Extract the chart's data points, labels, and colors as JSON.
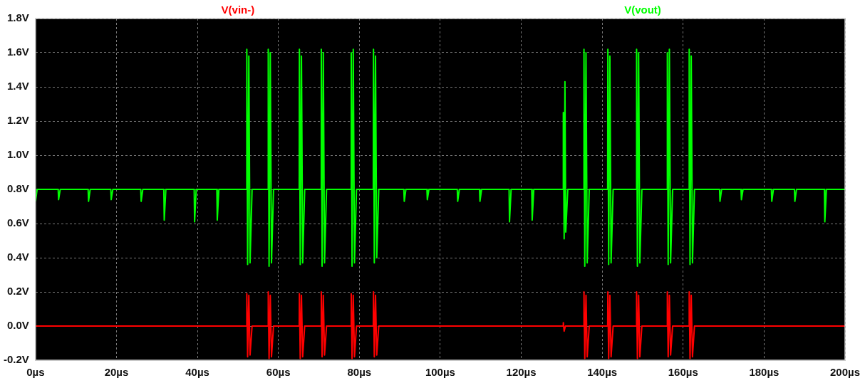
{
  "chart_data": {
    "type": "line",
    "legend": "top",
    "grid": true,
    "line_style": "solid",
    "marker": "none",
    "xlim": [
      0,
      200
    ],
    "xticks": [
      {
        "value": 0,
        "label": "0µs"
      },
      {
        "value": 20,
        "label": "20µs"
      },
      {
        "value": 40,
        "label": "40µs"
      },
      {
        "value": 60,
        "label": "60µs"
      },
      {
        "value": 80,
        "label": "80µs"
      },
      {
        "value": 100,
        "label": "100µs"
      },
      {
        "value": 120,
        "label": "120µs"
      },
      {
        "value": 140,
        "label": "140µs"
      },
      {
        "value": 160,
        "label": "160µs"
      },
      {
        "value": 180,
        "label": "180µs"
      },
      {
        "value": 200,
        "label": "200µs"
      }
    ],
    "ylim": [
      -0.2,
      1.8
    ],
    "yticks": [
      {
        "value": -0.2,
        "label": "-0.2V"
      },
      {
        "value": 0,
        "label": "0.0V"
      },
      {
        "value": 0.2,
        "label": "0.2V"
      },
      {
        "value": 0.4,
        "label": "0.4V"
      },
      {
        "value": 0.6,
        "label": "0.6V"
      },
      {
        "value": 0.8,
        "label": "0.8V"
      },
      {
        "value": 1.0,
        "label": "1.0V"
      },
      {
        "value": 1.2,
        "label": "1.2V"
      },
      {
        "value": 1.4,
        "label": "1.4V"
      },
      {
        "value": 1.6,
        "label": "1.6V"
      },
      {
        "value": 1.8,
        "label": "1.8V"
      }
    ],
    "series": [
      {
        "name": "V(vin-)",
        "color": "#ff0000",
        "x": [
          0,
          52.15,
          52.2,
          52.4,
          52.7,
          53.0,
          53.5,
          57.45,
          57.5,
          57.7,
          58.0,
          58.3,
          58.8,
          65.15,
          65.2,
          65.4,
          65.7,
          66.0,
          66.5,
          70.55,
          70.6,
          70.8,
          71.1,
          71.4,
          71.9,
          77.95,
          78.0,
          78.2,
          78.5,
          78.8,
          79.3,
          83.45,
          83.5,
          83.7,
          84.0,
          84.3,
          84.8,
          130.35,
          130.4,
          130.6,
          130.9,
          135.45,
          135.5,
          135.7,
          136.0,
          136.3,
          136.8,
          141.35,
          141.4,
          141.6,
          141.9,
          142.2,
          142.7,
          148.45,
          148.5,
          148.7,
          149.0,
          149.3,
          149.8,
          156.05,
          156.1,
          156.3,
          156.6,
          156.9,
          157.4,
          161.45,
          161.5,
          161.7,
          162.0,
          162.3,
          162.8,
          200
        ],
        "values": [
          0,
          0,
          0.19,
          -0.18,
          0.18,
          -0.17,
          0,
          0,
          0.2,
          -0.19,
          0.18,
          -0.18,
          0,
          0,
          0.19,
          -0.19,
          0.18,
          -0.18,
          0,
          0,
          0.2,
          -0.18,
          0.18,
          -0.17,
          0,
          0,
          0.19,
          -0.19,
          0.18,
          -0.18,
          0,
          0,
          0.2,
          -0.18,
          0.18,
          -0.17,
          0,
          0,
          0.02,
          -0.03,
          0,
          0,
          0.2,
          -0.19,
          0.18,
          -0.18,
          0,
          0,
          0.2,
          -0.19,
          0.18,
          -0.18,
          0,
          0,
          0.2,
          -0.19,
          0.18,
          -0.18,
          0,
          0,
          0.2,
          -0.18,
          0.18,
          -0.17,
          0,
          0,
          0.2,
          -0.19,
          0.18,
          -0.18,
          0,
          0
        ]
      },
      {
        "name": "V(vout)",
        "color": "#00ff00",
        "x": [
          0,
          0.4,
          5.6,
          5.7,
          6.1,
          13.0,
          13.1,
          13.5,
          18.6,
          18.7,
          19.1,
          26.0,
          26.1,
          26.5,
          31.7,
          31.8,
          32.2,
          39.2,
          39.3,
          39.7,
          44.8,
          44.9,
          45.3,
          52.15,
          52.2,
          52.4,
          52.7,
          53.0,
          53.5,
          57.45,
          57.5,
          57.7,
          58.0,
          58.3,
          58.8,
          65.15,
          65.2,
          65.4,
          65.7,
          66.0,
          66.5,
          70.55,
          70.6,
          70.8,
          71.1,
          71.4,
          71.9,
          77.95,
          78.0,
          78.2,
          78.5,
          78.8,
          79.3,
          83.45,
          83.5,
          83.7,
          84.0,
          84.3,
          84.8,
          91.0,
          91.1,
          91.5,
          96.7,
          96.8,
          97.2,
          104.2,
          104.3,
          104.7,
          109.7,
          109.8,
          110.2,
          117.0,
          117.1,
          117.5,
          122.6,
          122.7,
          123.1,
          130.35,
          130.4,
          130.6,
          130.8,
          131.0,
          131.5,
          135.45,
          135.5,
          135.7,
          136.0,
          136.3,
          136.8,
          141.35,
          141.4,
          141.6,
          141.9,
          142.2,
          142.7,
          148.45,
          148.5,
          148.7,
          149.0,
          149.3,
          149.8,
          156.05,
          156.1,
          156.3,
          156.6,
          156.9,
          157.4,
          161.45,
          161.5,
          161.7,
          162.0,
          162.3,
          162.8,
          169.0,
          169.1,
          169.5,
          174.3,
          174.4,
          174.8,
          181.8,
          181.9,
          182.3,
          187.5,
          187.6,
          188.0,
          194.9,
          195.0,
          195.4,
          200
        ],
        "values": [
          0.73,
          0.8,
          0.8,
          0.74,
          0.8,
          0.8,
          0.73,
          0.8,
          0.8,
          0.74,
          0.8,
          0.8,
          0.73,
          0.8,
          0.8,
          0.62,
          0.8,
          0.8,
          0.61,
          0.8,
          0.8,
          0.62,
          0.8,
          0.8,
          1.62,
          0.36,
          1.58,
          0.37,
          0.8,
          0.8,
          1.62,
          0.35,
          1.6,
          0.37,
          0.8,
          0.8,
          1.62,
          0.36,
          1.58,
          0.37,
          0.8,
          0.8,
          1.62,
          0.35,
          1.6,
          0.37,
          0.8,
          0.8,
          1.6,
          0.35,
          1.62,
          0.37,
          0.8,
          0.8,
          1.62,
          0.37,
          1.58,
          0.4,
          0.8,
          0.8,
          0.73,
          0.8,
          0.8,
          0.74,
          0.8,
          0.8,
          0.73,
          0.8,
          0.8,
          0.73,
          0.8,
          0.8,
          0.61,
          0.8,
          0.8,
          0.62,
          0.8,
          0.8,
          1.25,
          0.51,
          1.43,
          0.55,
          0.8,
          0.8,
          1.62,
          0.35,
          1.6,
          0.37,
          0.8,
          0.8,
          1.62,
          0.36,
          1.58,
          0.37,
          0.8,
          0.8,
          1.62,
          0.35,
          1.6,
          0.37,
          0.8,
          0.8,
          1.6,
          0.36,
          1.62,
          0.37,
          0.8,
          0.8,
          1.62,
          0.36,
          1.58,
          0.37,
          0.8,
          0.8,
          0.73,
          0.8,
          0.8,
          0.74,
          0.8,
          0.8,
          0.73,
          0.8,
          0.8,
          0.73,
          0.8,
          0.8,
          0.61,
          0.8,
          0.8
        ]
      }
    ]
  }
}
